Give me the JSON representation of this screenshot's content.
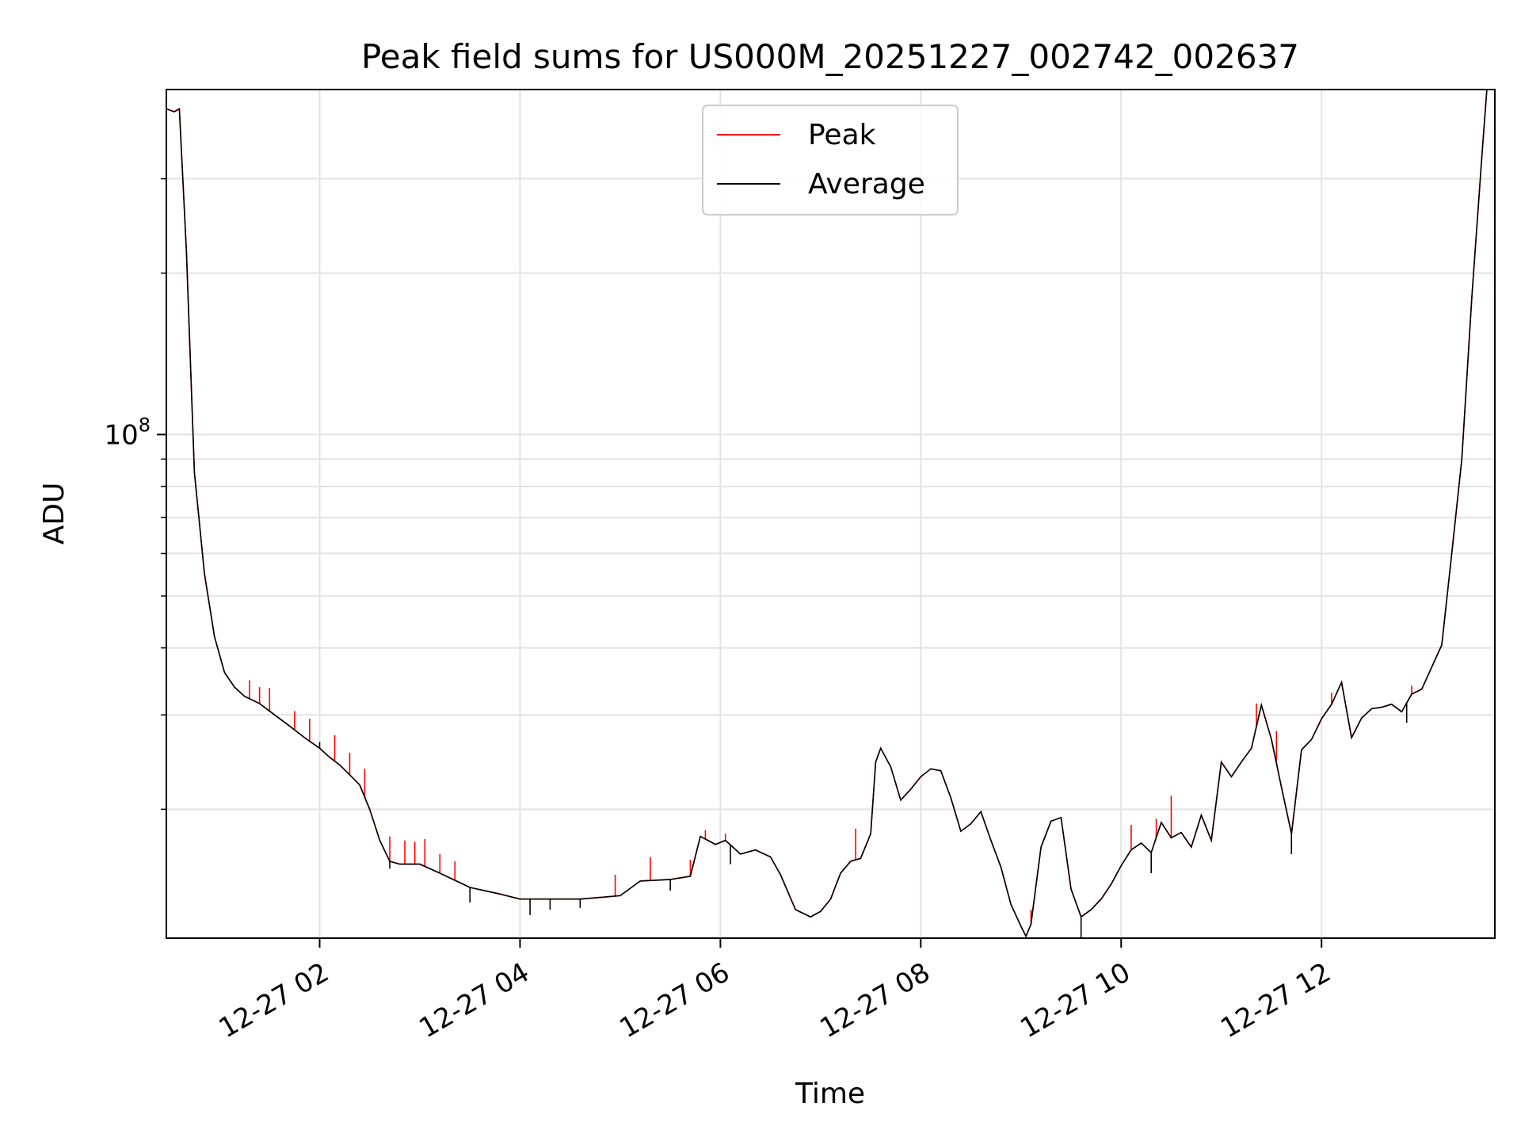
{
  "chart_data": {
    "type": "line",
    "title": "Peak field sums for US000M_20251227_002742_002637",
    "xlabel": "Time",
    "ylabel": "ADU",
    "yscale": "log",
    "x_unit": "hours since 12-27 00:00",
    "xlim": [
      0.47,
      13.73
    ],
    "ylim": [
      11500000,
      440000000
    ],
    "x_ticks": [
      {
        "value": 2,
        "label": "12-27 02"
      },
      {
        "value": 4,
        "label": "12-27 04"
      },
      {
        "value": 6,
        "label": "12-27 06"
      },
      {
        "value": 8,
        "label": "12-27 08"
      },
      {
        "value": 10,
        "label": "12-27 10"
      },
      {
        "value": 12,
        "label": "12-27 12"
      }
    ],
    "y_major_ticks": [
      {
        "value": 100000000,
        "base": "10",
        "exponent": "8"
      }
    ],
    "y_minor_ticks": [
      20000000,
      30000000,
      40000000,
      50000000,
      60000000,
      70000000,
      80000000,
      90000000,
      200000000,
      300000000
    ],
    "grid": true,
    "legend_position": "top-center",
    "series": [
      {
        "name": "Peak",
        "color": "#ff0000",
        "x": [
          0.47,
          0.55,
          0.6,
          0.67,
          0.75,
          0.85,
          0.95,
          1.05,
          1.15,
          1.25,
          1.4,
          1.55,
          1.7,
          1.85,
          2.0,
          2.1,
          2.2,
          2.3,
          2.4,
          2.5,
          2.6,
          2.7,
          2.8,
          3.0,
          3.2,
          3.5,
          3.8,
          4.0,
          4.3,
          4.6,
          4.8,
          5.0,
          5.2,
          5.5,
          5.7,
          5.8,
          5.95,
          6.05,
          6.2,
          6.35,
          6.5,
          6.6,
          6.75,
          6.9,
          7.0,
          7.1,
          7.2,
          7.3,
          7.4,
          7.5,
          7.55,
          7.6,
          7.7,
          7.8,
          7.9,
          8.0,
          8.1,
          8.2,
          8.3,
          8.4,
          8.5,
          8.6,
          8.7,
          8.8,
          8.9,
          9.0,
          9.05,
          9.1,
          9.2,
          9.3,
          9.4,
          9.5,
          9.6,
          9.7,
          9.8,
          9.9,
          10.0,
          10.1,
          10.2,
          10.3,
          10.4,
          10.5,
          10.6,
          10.7,
          10.8,
          10.9,
          11.0,
          11.1,
          11.2,
          11.3,
          11.4,
          11.5,
          11.6,
          11.7,
          11.8,
          11.9,
          12.0,
          12.1,
          12.2,
          12.3,
          12.4,
          12.5,
          12.6,
          12.7,
          12.8,
          12.9,
          13.0,
          13.2,
          13.3,
          13.4,
          13.5,
          13.6,
          13.65
        ],
        "y": [
          405000000,
          400000000,
          405000000,
          220000000,
          85000000,
          55000000,
          42000000,
          36000000,
          33800000,
          32500000,
          31500000,
          30000000,
          28600000,
          27200000,
          26000000,
          25000000,
          24200000,
          23200000,
          22200000,
          20000000,
          17500000,
          16000000,
          15800000,
          15800000,
          15200000,
          14300000,
          13900000,
          13600000,
          13600000,
          13600000,
          13700000,
          13800000,
          14700000,
          14800000,
          15000000,
          17800000,
          17200000,
          17500000,
          16500000,
          16800000,
          16300000,
          15100000,
          13000000,
          12600000,
          12900000,
          13600000,
          15200000,
          16000000,
          16200000,
          18000000,
          24500000,
          26000000,
          24000000,
          20800000,
          21800000,
          23000000,
          23800000,
          23600000,
          21000000,
          18200000,
          18800000,
          19800000,
          17500000,
          15600000,
          13300000,
          12100000,
          11600000,
          12200000,
          17000000,
          19000000,
          19300000,
          14200000,
          12600000,
          13000000,
          13600000,
          14500000,
          15700000,
          16800000,
          17300000,
          16600000,
          18900000,
          17700000,
          18100000,
          17000000,
          19500000,
          17500000,
          24500000,
          23000000,
          24500000,
          26000000,
          31300000,
          27000000,
          22000000,
          18000000,
          25800000,
          27000000,
          29500000,
          31400000,
          34500000,
          27200000,
          29600000,
          30800000,
          31000000,
          31400000,
          30400000,
          32800000,
          33500000,
          40500000,
          60000000,
          90000000,
          180000000,
          330000000,
          440000000
        ],
        "spikes": [
          [
            1.3,
            34800000
          ],
          [
            1.4,
            33800000
          ],
          [
            1.5,
            33700000
          ],
          [
            1.75,
            30500000
          ],
          [
            1.9,
            29500000
          ],
          [
            2.15,
            27500000
          ],
          [
            2.3,
            25500000
          ],
          [
            2.45,
            23800000
          ],
          [
            2.7,
            17800000
          ],
          [
            2.85,
            17500000
          ],
          [
            2.95,
            17400000
          ],
          [
            3.05,
            17600000
          ],
          [
            3.2,
            16500000
          ],
          [
            3.35,
            16000000
          ],
          [
            4.95,
            15100000
          ],
          [
            5.3,
            16300000
          ],
          [
            5.7,
            16100000
          ],
          [
            5.85,
            18300000
          ],
          [
            6.05,
            18000000
          ],
          [
            7.35,
            18400000
          ],
          [
            9.1,
            13000000
          ],
          [
            10.1,
            18700000
          ],
          [
            10.35,
            19200000
          ],
          [
            10.5,
            21200000
          ],
          [
            11.35,
            31500000
          ],
          [
            11.55,
            28000000
          ],
          [
            12.1,
            33000000
          ],
          [
            12.9,
            34000000
          ]
        ]
      },
      {
        "name": "Average",
        "color": "#000000",
        "x": [
          0.47,
          0.55,
          0.6,
          0.67,
          0.75,
          0.85,
          0.95,
          1.05,
          1.15,
          1.25,
          1.4,
          1.55,
          1.7,
          1.85,
          2.0,
          2.1,
          2.2,
          2.3,
          2.4,
          2.5,
          2.6,
          2.7,
          2.8,
          3.0,
          3.2,
          3.5,
          3.8,
          4.0,
          4.3,
          4.6,
          4.8,
          5.0,
          5.2,
          5.5,
          5.7,
          5.8,
          5.95,
          6.05,
          6.2,
          6.35,
          6.5,
          6.6,
          6.75,
          6.9,
          7.0,
          7.1,
          7.2,
          7.3,
          7.4,
          7.5,
          7.55,
          7.6,
          7.7,
          7.8,
          7.9,
          8.0,
          8.1,
          8.2,
          8.3,
          8.4,
          8.5,
          8.6,
          8.7,
          8.8,
          8.9,
          9.0,
          9.05,
          9.1,
          9.2,
          9.3,
          9.4,
          9.5,
          9.6,
          9.7,
          9.8,
          9.9,
          10.0,
          10.1,
          10.2,
          10.3,
          10.4,
          10.5,
          10.6,
          10.7,
          10.8,
          10.9,
          11.0,
          11.1,
          11.2,
          11.3,
          11.4,
          11.5,
          11.6,
          11.7,
          11.8,
          11.9,
          12.0,
          12.1,
          12.2,
          12.3,
          12.4,
          12.5,
          12.6,
          12.7,
          12.8,
          12.9,
          13.0,
          13.2,
          13.3,
          13.4,
          13.5,
          13.6,
          13.65
        ],
        "y": [
          405000000,
          400000000,
          405000000,
          220000000,
          85000000,
          55000000,
          42000000,
          36000000,
          33800000,
          32500000,
          31500000,
          30000000,
          28600000,
          27200000,
          26000000,
          25000000,
          24200000,
          23200000,
          22200000,
          20000000,
          17500000,
          16000000,
          15800000,
          15800000,
          15200000,
          14300000,
          13900000,
          13600000,
          13600000,
          13600000,
          13700000,
          13800000,
          14700000,
          14800000,
          15000000,
          17800000,
          17200000,
          17500000,
          16500000,
          16800000,
          16300000,
          15100000,
          13000000,
          12600000,
          12900000,
          13600000,
          15200000,
          16000000,
          16200000,
          18000000,
          24500000,
          26000000,
          24000000,
          20800000,
          21800000,
          23000000,
          23800000,
          23600000,
          21000000,
          18200000,
          18800000,
          19800000,
          17500000,
          15600000,
          13300000,
          12100000,
          11600000,
          12200000,
          17000000,
          19000000,
          19300000,
          14200000,
          12600000,
          13000000,
          13600000,
          14500000,
          15700000,
          16800000,
          17300000,
          16600000,
          18900000,
          17700000,
          18100000,
          17000000,
          19500000,
          17500000,
          24500000,
          23000000,
          24500000,
          26000000,
          31300000,
          27000000,
          22000000,
          18000000,
          25800000,
          27000000,
          29500000,
          31400000,
          34500000,
          27200000,
          29600000,
          30800000,
          31000000,
          31400000,
          30400000,
          32800000,
          33500000,
          40500000,
          60000000,
          90000000,
          180000000,
          330000000,
          440000000
        ],
        "dips": [
          [
            2.0,
            26700000
          ],
          [
            2.7,
            15500000
          ],
          [
            3.5,
            13400000
          ],
          [
            4.1,
            12700000
          ],
          [
            4.3,
            13000000
          ],
          [
            4.6,
            13100000
          ],
          [
            5.5,
            14100000
          ],
          [
            6.1,
            15800000
          ],
          [
            9.6,
            11400000
          ],
          [
            10.3,
            15200000
          ],
          [
            11.7,
            16500000
          ],
          [
            12.85,
            29000000
          ]
        ]
      }
    ]
  }
}
